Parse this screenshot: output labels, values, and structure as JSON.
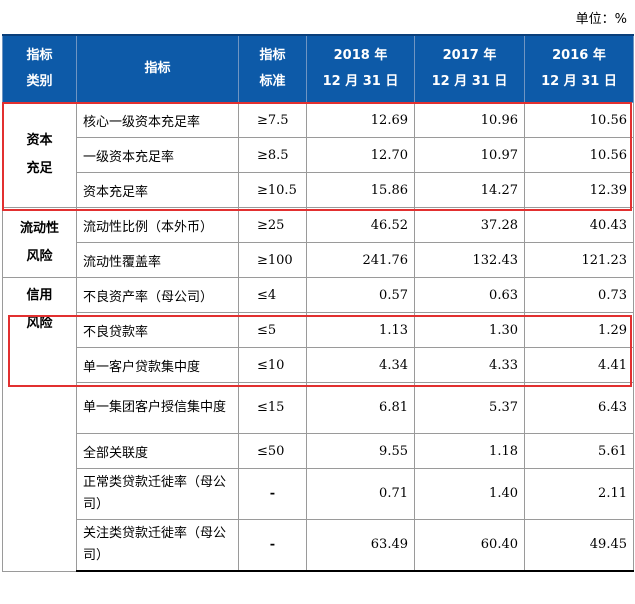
{
  "unit_label": "单位：%",
  "header": {
    "category": [
      "指标",
      "类别"
    ],
    "indicator": "指标",
    "standard": [
      "指标",
      "标准"
    ],
    "years": [
      [
        "2018 年",
        "12 月 31 日"
      ],
      [
        "2017 年",
        "12 月 31 日"
      ],
      [
        "2016 年",
        "12 月 31 日"
      ]
    ]
  },
  "categories": {
    "capital": [
      "资本",
      "充足"
    ],
    "liquidity": [
      "流动性",
      "风险"
    ],
    "credit": [
      "信用",
      "风险"
    ]
  },
  "rows": [
    {
      "name": "核心一级资本充足率",
      "std": "≥7.5",
      "v": [
        "12.69",
        "10.96",
        "10.56"
      ]
    },
    {
      "name": "一级资本充足率",
      "std": "≥8.5",
      "v": [
        "12.70",
        "10.97",
        "10.56"
      ]
    },
    {
      "name": "资本充足率",
      "std": "≥10.5",
      "v": [
        "15.86",
        "14.27",
        "12.39"
      ]
    },
    {
      "name": "流动性比例（本外币）",
      "std": "≥25",
      "v": [
        "46.52",
        "37.28",
        "40.43"
      ]
    },
    {
      "name": "流动性覆盖率",
      "std": "≥100",
      "v": [
        "241.76",
        "132.43",
        "121.23"
      ]
    },
    {
      "name": "不良资产率（母公司）",
      "std": "≤4",
      "v": [
        "0.57",
        "0.63",
        "0.73"
      ]
    },
    {
      "name": "不良贷款率",
      "std": "≤5",
      "v": [
        "1.13",
        "1.30",
        "1.29"
      ]
    },
    {
      "name": "单一客户贷款集中度",
      "std": "≤10",
      "v": [
        "4.34",
        "4.33",
        "4.41"
      ]
    },
    {
      "name": "单一集团客户授信集中度",
      "std": "≤15",
      "v": [
        "6.81",
        "5.37",
        "6.43"
      ]
    },
    {
      "name": "全部关联度",
      "std": "≤50",
      "v": [
        "9.55",
        "1.18",
        "5.61"
      ]
    },
    {
      "name": "正常类贷款迁徙率（母公司）",
      "std": "-",
      "v": [
        "0.71",
        "1.40",
        "2.11"
      ]
    },
    {
      "name": "关注类贷款迁徙率（母公司）",
      "std": "-",
      "v": [
        "63.49",
        "60.40",
        "49.45"
      ]
    }
  ]
}
